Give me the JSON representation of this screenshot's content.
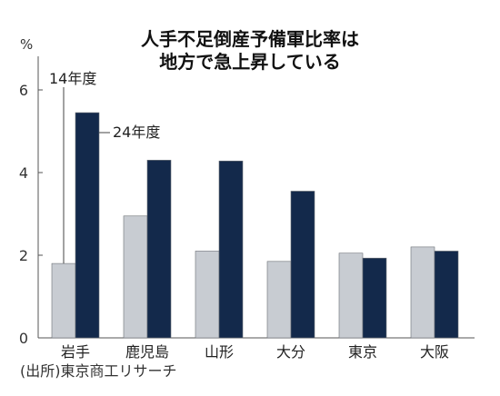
{
  "chart_data": {
    "type": "bar",
    "title": "人手不足倒産予備軍比率は",
    "subtitle": "地方で急上昇している",
    "ylabel": "%",
    "ylim": [
      0,
      7
    ],
    "yticks": [
      0,
      2,
      4,
      6
    ],
    "categories": [
      "岩手",
      "鹿児島",
      "山形",
      "大分",
      "東京",
      "大阪"
    ],
    "series": [
      {
        "name": "14年度",
        "values": [
          1.8,
          2.95,
          2.1,
          1.85,
          2.05,
          2.2
        ],
        "color": "#c8ccd2"
      },
      {
        "name": "24年度",
        "values": [
          5.45,
          4.3,
          4.28,
          3.55,
          1.93,
          2.1
        ],
        "color": "#13294b"
      }
    ],
    "source": "(出所)東京商工リサーチ",
    "grid": false
  }
}
